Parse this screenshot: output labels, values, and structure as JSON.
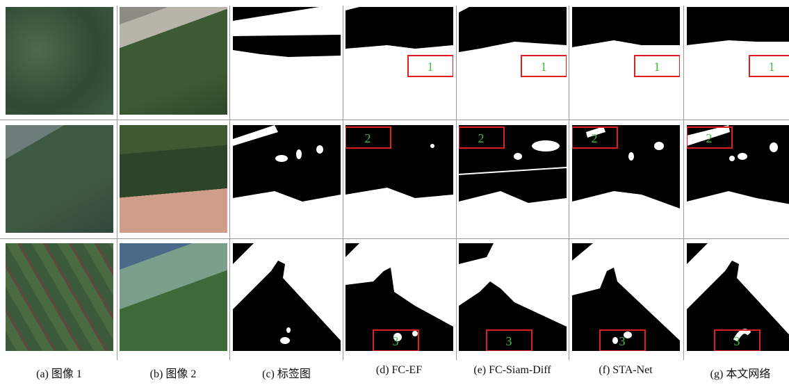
{
  "columns": [
    "(a) 图像 1",
    "(b) 图像 2",
    "(c) 标签图",
    "(d) FC-EF",
    "(e) FC-Siam-Diff",
    "(f) STA-Net",
    "(g) 本文网络"
  ],
  "rows": [
    {
      "marker": "1"
    },
    {
      "marker": "2"
    },
    {
      "marker": "3"
    }
  ]
}
